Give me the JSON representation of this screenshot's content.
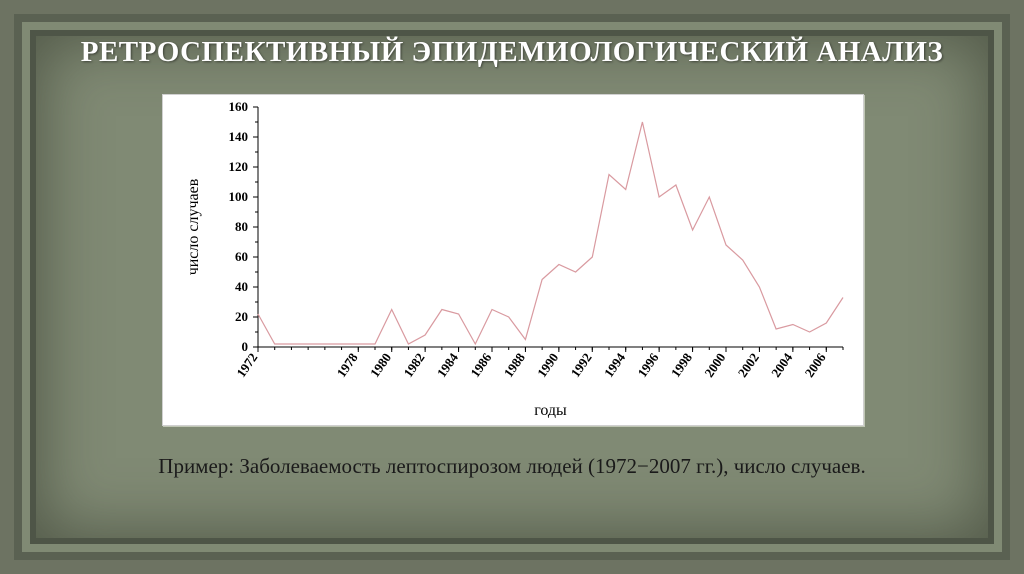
{
  "title": "РЕТРОСПЕКТИВНЫЙ ЭПИДЕМИОЛОГИЧЕСКИЙ АНАЛИЗ",
  "caption": "Пример: Заболеваемость лептоспирозом людей (1972−2007 гг.), число случаев.",
  "chart": {
    "type": "line",
    "x_label": "годы",
    "y_label": "число случаев",
    "background_color": "#ffffff",
    "axis_color": "#000000",
    "tick_color": "#000000",
    "line_color": "#d99aa0",
    "line_width": 1.2,
    "label_fontsize": 16,
    "tick_fontsize": 13,
    "ylim": [
      0,
      160
    ],
    "ytick_step": 20,
    "x_start": 1972,
    "x_end": 2007,
    "x_tick_labels": [
      "1972",
      "1978",
      "1980",
      "1982",
      "1984",
      "1986",
      "1988",
      "1990",
      "1992",
      "1994",
      "1996",
      "1998",
      "2000",
      "2002",
      "2004",
      "2006"
    ],
    "x_tick_years": [
      1972,
      1978,
      1980,
      1982,
      1984,
      1986,
      1988,
      1990,
      1992,
      1994,
      1996,
      1998,
      2000,
      2002,
      2004,
      2006
    ],
    "years": [
      1972,
      1973,
      1974,
      1975,
      1976,
      1977,
      1978,
      1979,
      1980,
      1981,
      1982,
      1983,
      1984,
      1985,
      1986,
      1987,
      1988,
      1989,
      1990,
      1991,
      1992,
      1993,
      1994,
      1995,
      1996,
      1997,
      1998,
      1999,
      2000,
      2001,
      2002,
      2003,
      2004,
      2005,
      2006,
      2007
    ],
    "values": [
      22,
      2,
      2,
      2,
      2,
      2,
      2,
      2,
      25,
      2,
      8,
      25,
      22,
      2,
      25,
      20,
      5,
      45,
      55,
      50,
      60,
      115,
      105,
      150,
      100,
      108,
      78,
      100,
      68,
      58,
      40,
      12,
      15,
      10,
      16,
      33
    ]
  },
  "palette": {
    "slide_bg": "#808a74",
    "slide_edge": "#5a6152",
    "title_color": "#ffffff",
    "caption_color": "#1a1a1a"
  }
}
